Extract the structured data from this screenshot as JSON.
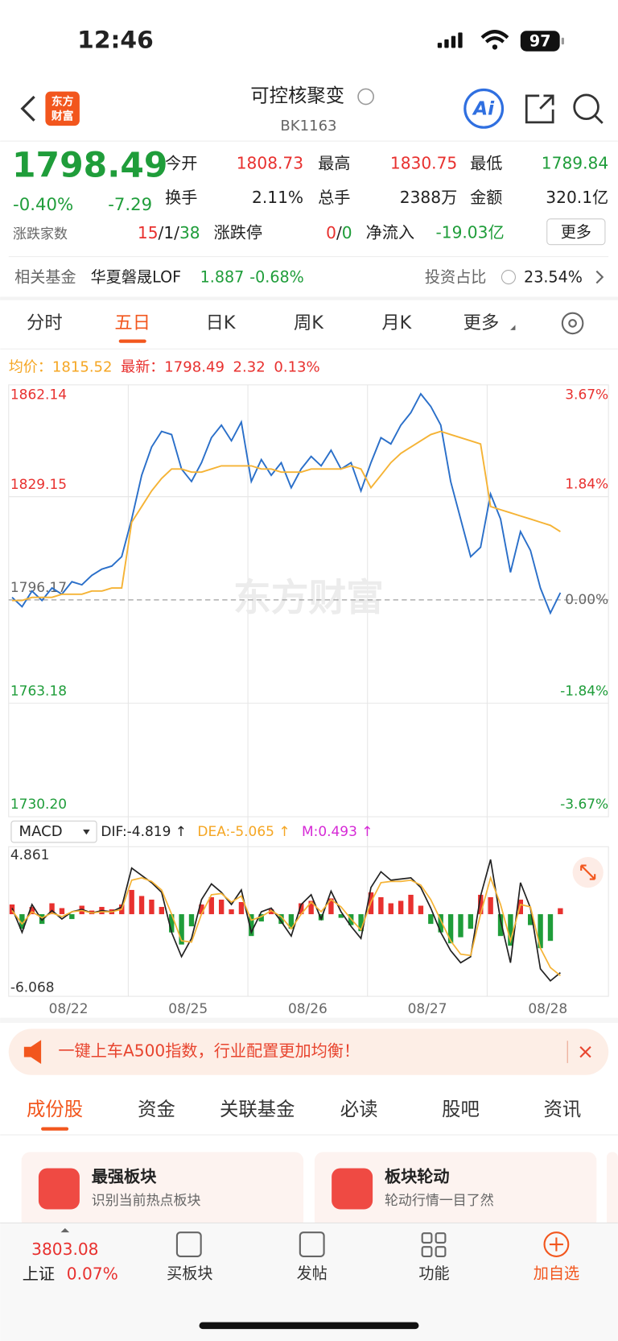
{
  "status_bar": {
    "time": "12:46",
    "battery": "97"
  },
  "header": {
    "logo": [
      "东方",
      "财富"
    ],
    "title": "可控核聚变",
    "code": "BK1163",
    "ai": "Ai"
  },
  "quote": {
    "price": "1798.49",
    "change_pct": "-0.40%",
    "change": "-7.29",
    "stats": [
      [
        {
          "label": "今开",
          "value": "1808.73"
        },
        {
          "label": "最高",
          "value": "1830.75"
        },
        {
          "label": "最低",
          "value": "1789.84"
        }
      ],
      [
        {
          "label": "换手",
          "value": "2.11%"
        },
        {
          "label": "总手",
          "value": "2388万"
        },
        {
          "label": "金额",
          "value": "320.1亿"
        }
      ]
    ],
    "breadth_label": "涨跌家数",
    "breadth": [
      "15",
      "/",
      "1",
      "/",
      "38"
    ],
    "limit_label": "涨跌停",
    "limit": [
      "0",
      "/",
      "0"
    ],
    "inflow_label": "净流入",
    "inflow": "-19.03亿",
    "more": "更多"
  },
  "fund": {
    "label": "相关基金",
    "name": "华夏磐晟LOF",
    "price": "1.887",
    "change": "-0.68%",
    "ratio_label": "投资占比",
    "ratio": "23.54%"
  },
  "chart_tabs": {
    "items": [
      "分时",
      "五日",
      "日K",
      "周K",
      "月K",
      "更多"
    ],
    "active": 1
  },
  "legend": {
    "avg_label": "均价：",
    "avg": "1815.52",
    "last_label": "最新：",
    "last": "1798.49",
    "change": "2.32",
    "change_pct": "0.13%"
  },
  "watermark": "东方财富",
  "price_chart": {
    "type": "line",
    "ylim": [
      1730.2,
      1862.14
    ],
    "yticks": [
      1862.14,
      1829.15,
      1796.17,
      1763.18,
      {
        "value": 1730.2,
        "label": "1730.20"
      }
    ],
    "y2lim": [
      -3.67,
      3.67
    ],
    "y2ticks": [
      {
        "value": 3.67,
        "label": "3.67%"
      },
      {
        "value": 1.84,
        "label": "1.84%"
      },
      {
        "value": 0,
        "label": "0.00%"
      },
      {
        "value": -1.84,
        "label": "-1.84%"
      },
      {
        "value": -3.67,
        "label": "-3.67%"
      }
    ],
    "series": [
      {
        "color": "#2a6fc9",
        "values": [
          1797,
          1794,
          1799,
          1796,
          1800,
          1798,
          1802,
          1801,
          1804,
          1806,
          1807,
          1810,
          1822,
          1836,
          1845,
          1850,
          1849,
          1838,
          1834,
          1840,
          1848,
          1852,
          1847,
          1853,
          1834,
          1841,
          1836,
          1840,
          1832,
          1838,
          1842,
          1839,
          1844,
          1838,
          1840,
          1831,
          1840,
          1848,
          1846,
          1852,
          1856,
          1862,
          1858,
          1852,
          1834,
          1822,
          1810,
          1813,
          1830,
          1822,
          1805,
          1818,
          1812,
          1800,
          1792,
          1798.49
        ]
      },
      {
        "color": "#f5b335",
        "values": [
          1796,
          1796,
          1797,
          1797,
          1797,
          1798,
          1798,
          1798,
          1799,
          1799,
          1800,
          1800,
          1821,
          1826,
          1831,
          1835,
          1838,
          1838,
          1837,
          1837,
          1838,
          1839,
          1839,
          1839,
          1839,
          1838,
          1838,
          1837,
          1837,
          1837,
          1838,
          1838,
          1838,
          1838,
          1839,
          1838,
          1832,
          1836,
          1840,
          1843,
          1845,
          1847,
          1849,
          1850,
          1849,
          1848,
          1847,
          1846,
          1826,
          1825,
          1824,
          1823,
          1822,
          1821,
          1820,
          1818
        ]
      }
    ]
  },
  "macd_chart": {
    "type": "bar",
    "selector": "MACD",
    "dif_label": "DIF:-4.819 ↑",
    "dea_label": "DEA:-5.065 ↑",
    "m_label": "M:0.493 ↑",
    "ylim": [
      -6.068,
      4.861
    ],
    "yticks": [
      4.861,
      -6.068
    ],
    "histogram": [
      0.8,
      -1.2,
      0.6,
      -0.8,
      0.9,
      0.5,
      -0.4,
      0.7,
      0.3,
      0.6,
      0.4,
      0.8,
      2.0,
      1.5,
      1.2,
      0.6,
      -1.5,
      -2.5,
      -1.0,
      0.8,
      1.4,
      1.2,
      0.4,
      1.0,
      -1.8,
      -0.6,
      0.4,
      -0.8,
      -1.2,
      0.9,
      1.1,
      -0.5,
      1.3,
      -0.3,
      -0.9,
      -1.4,
      1.8,
      1.4,
      0.9,
      1.1,
      1.6,
      0.7,
      -0.8,
      -1.5,
      -2.4,
      -1.9,
      -1.2,
      1.6,
      1.4,
      -1.8,
      -2.6,
      1.2,
      -0.9,
      -2.8,
      -2.2,
      0.493
    ],
    "dif": {
      "color": "#222222",
      "values": [
        0.5,
        -1.5,
        0.8,
        -0.5,
        0.3,
        -0.4,
        0.2,
        0.4,
        0.1,
        0.3,
        0.2,
        0.6,
        3.8,
        3.2,
        2.6,
        1.8,
        -1.5,
        -3.5,
        -2.0,
        1.2,
        2.5,
        1.8,
        0.8,
        2.0,
        -1.5,
        0.2,
        0.5,
        -0.6,
        -1.8,
        0.8,
        1.6,
        -0.4,
        1.9,
        0.2,
        -1.0,
        -2.0,
        2.2,
        3.5,
        2.8,
        2.9,
        3.0,
        2.2,
        0.5,
        -1.5,
        -3.0,
        -4.0,
        -3.5,
        1.5,
        4.5,
        -0.5,
        -4.0,
        2.6,
        0.5,
        -4.5,
        -5.5,
        -4.819
      ]
    },
    "dea": {
      "color": "#f5b335",
      "values": [
        0.3,
        -0.8,
        0.2,
        -0.3,
        0.1,
        -0.2,
        0.2,
        0.3,
        0.1,
        0.2,
        0.2,
        0.4,
        2.8,
        3.0,
        2.7,
        2.0,
        0.0,
        -2.2,
        -2.3,
        0.0,
        1.6,
        1.7,
        1.0,
        1.5,
        -0.5,
        -0.2,
        0.3,
        -0.2,
        -1.2,
        0.0,
        1.0,
        0.2,
        1.2,
        0.6,
        -0.4,
        -1.3,
        1.0,
        2.6,
        2.7,
        2.7,
        2.8,
        2.4,
        1.2,
        -0.5,
        -2.2,
        -3.3,
        -3.4,
        0.0,
        3.0,
        0.8,
        -2.2,
        0.8,
        0.6,
        -2.8,
        -4.4,
        -5.065
      ]
    },
    "up_color": "#e8312f",
    "down_color": "#1f9d3a"
  },
  "dates": [
    "08/22",
    "08/25",
    "08/26",
    "08/27",
    "08/28"
  ],
  "banner": {
    "text": "一键上车A500指数，行业配置更加均衡！"
  },
  "section_tabs": {
    "items": [
      "成份股",
      "资金",
      "关联基金",
      "必读",
      "股吧",
      "资讯"
    ],
    "active": 0
  },
  "cards": [
    {
      "title": "最强板块",
      "subtitle": "识别当前热点板块"
    },
    {
      "title": "板块轮动",
      "subtitle": "轮动行情一目了然"
    }
  ],
  "bottom_nav": {
    "index_value": "3803.08",
    "index_name": "上证",
    "index_change": "0.07%",
    "items": [
      "买板块",
      "发帖",
      "功能",
      "加自选"
    ]
  }
}
